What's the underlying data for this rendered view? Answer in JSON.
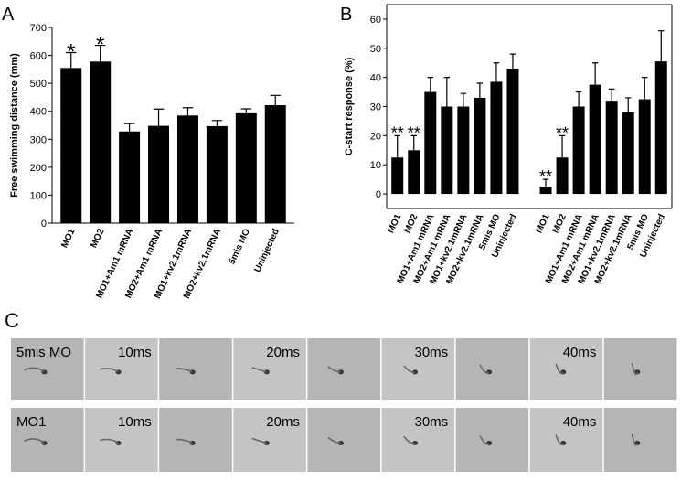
{
  "chart_data": [
    {
      "type": "bar",
      "panel_label": "A",
      "ylabel": "Free swimming distance (mm)",
      "categories": [
        "MO1",
        "MO2",
        "MO1+Am1 mRNA",
        "MO2+Am1 mRNA",
        "MO1+kv2.1mRNA",
        "MO2+kv2.1mRNA",
        "5mis MO",
        "Uninjected"
      ],
      "values": [
        555,
        578,
        328,
        348,
        385,
        347,
        393,
        422
      ],
      "errors": [
        55,
        58,
        28,
        60,
        28,
        20,
        16,
        35
      ],
      "annotations": [
        "*",
        "*",
        null,
        null,
        null,
        null,
        null,
        null
      ],
      "color": "#000000",
      "ylim": [
        0,
        700
      ],
      "yticks": [
        0,
        100,
        200,
        300,
        400,
        500,
        600,
        700
      ],
      "frame": false
    },
    {
      "type": "bar",
      "panel_label": "B",
      "ylabel": "C-start response (%)",
      "categories": [
        "MO1",
        "MO2",
        "MO1+Am1 mRNA",
        "MO2+Am1 mRNA",
        "MO1+kv2.1mRNA",
        "MO2+kv2.1mRNA",
        "5mis MO",
        "Uninjected",
        null,
        "MO1",
        "MO2",
        "MO1+Am1 mRNA",
        "MO2+Am1 mRNA",
        "MO1+kv2.1mRNA",
        "MO2+kv2.1mRNA",
        "5mis MO",
        "Uninjected"
      ],
      "values": [
        12.5,
        15,
        35,
        30,
        30,
        33,
        38.5,
        43,
        null,
        2.5,
        12.5,
        30,
        37.5,
        32,
        28,
        32.5,
        45.5
      ],
      "errors": [
        7.5,
        5,
        5,
        10,
        4.5,
        5,
        6.5,
        5,
        null,
        2.5,
        7.5,
        5,
        7.5,
        4,
        5,
        7.5,
        10.5
      ],
      "annotations": [
        "**",
        "**",
        null,
        null,
        null,
        null,
        null,
        null,
        null,
        "**",
        "**",
        null,
        null,
        null,
        null,
        null,
        null
      ],
      "color": "#000000",
      "ylim": [
        -5,
        65
      ],
      "yticks": [
        0,
        10,
        20,
        30,
        40,
        50,
        60
      ],
      "frame": true
    }
  ],
  "panel_c": {
    "label": "C",
    "rows": [
      {
        "label": "5mis MO",
        "times": [
          "10ms",
          "20ms",
          "30ms",
          "40ms"
        ]
      },
      {
        "label": "MO1",
        "times": [
          "10ms",
          "20ms",
          "30ms",
          "40ms"
        ]
      }
    ]
  }
}
